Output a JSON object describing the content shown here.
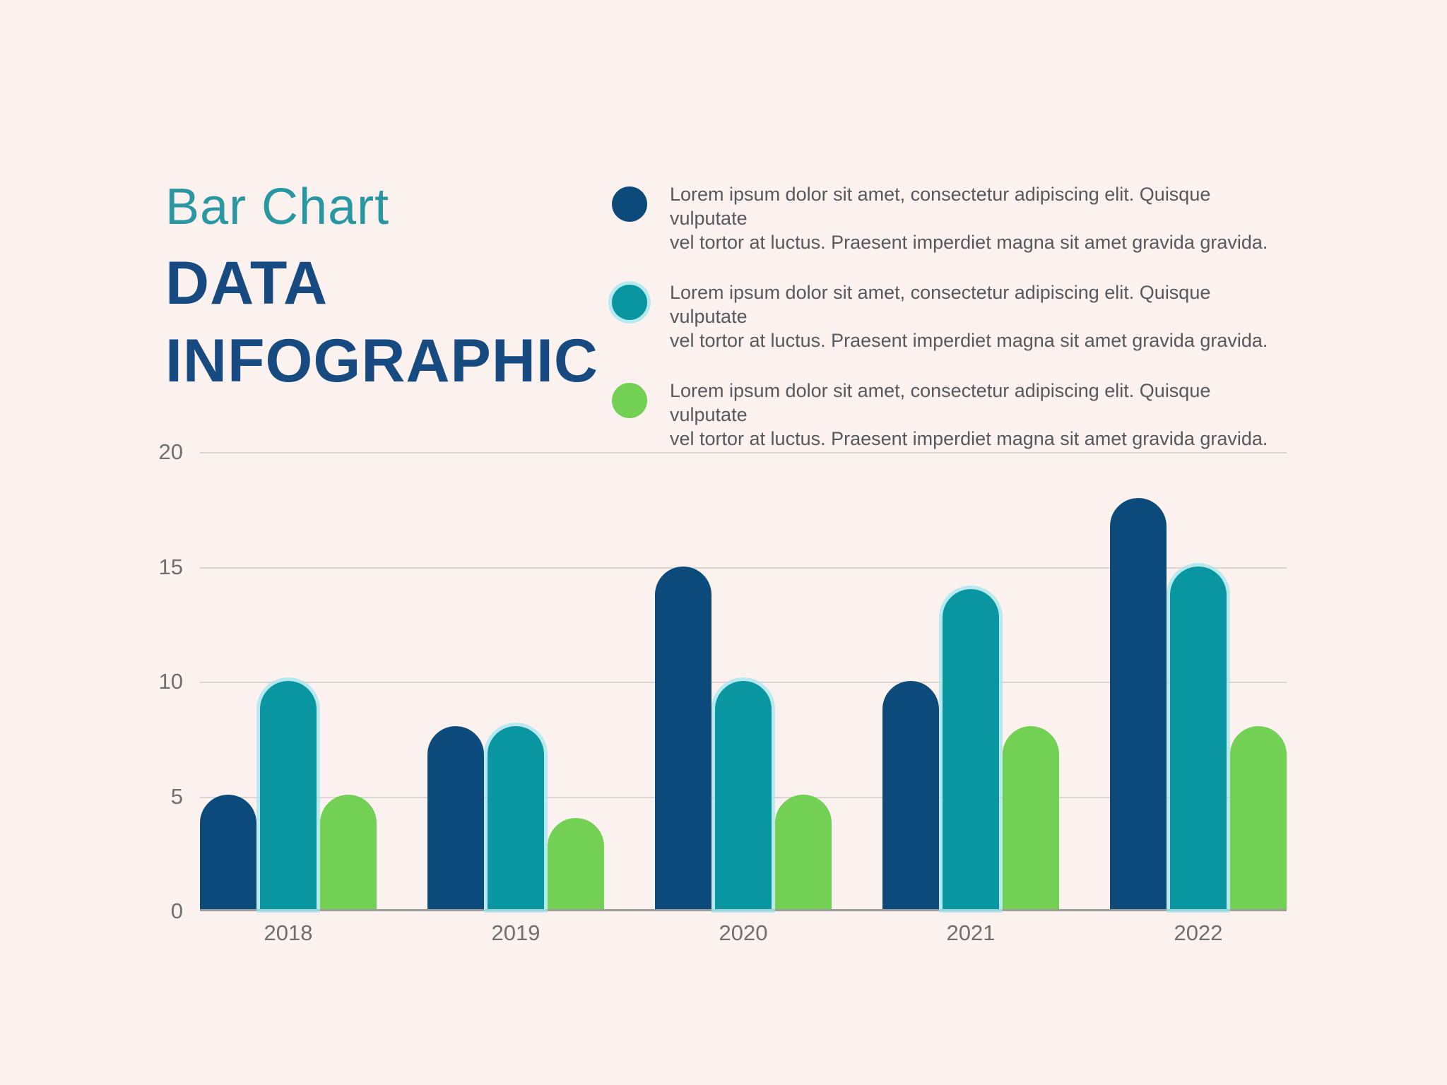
{
  "header": {
    "subtitle": "Bar Chart",
    "title_line1": "DATA",
    "title_line2": "INFOGRAPHIC"
  },
  "legend": {
    "items": [
      {
        "series": "navy",
        "color": "#0D4A7C",
        "halo": false,
        "lines": [
          "Lorem ipsum dolor sit amet, consectetur adipiscing elit. Quisque vulputate",
          "vel tortor at luctus. Praesent imperdiet magna sit amet gravida gravida."
        ]
      },
      {
        "series": "teal",
        "color": "#0A96A0",
        "halo": true,
        "lines": [
          "Lorem ipsum dolor sit amet, consectetur adipiscing elit. Quisque vulputate",
          "vel tortor at luctus. Praesent imperdiet magna sit amet gravida gravida."
        ]
      },
      {
        "series": "green",
        "color": "#72D055",
        "halo": false,
        "lines": [
          "Lorem ipsum dolor sit amet, consectetur adipiscing elit. Quisque vulputate",
          "vel tortor at luctus. Praesent imperdiet magna sit amet gravida gravida."
        ]
      }
    ]
  },
  "chart_data": {
    "type": "bar",
    "categories": [
      "2018",
      "2019",
      "2020",
      "2021",
      "2022"
    ],
    "series": [
      {
        "name": "navy",
        "color": "#0D4A7C",
        "halo": false,
        "values": [
          5,
          8,
          15,
          10,
          18
        ]
      },
      {
        "name": "teal",
        "color": "#0A96A0",
        "halo": true,
        "values": [
          10,
          8,
          10,
          14,
          15
        ]
      },
      {
        "name": "green",
        "color": "#72D055",
        "halo": false,
        "values": [
          5,
          4,
          5,
          8,
          8
        ]
      }
    ],
    "title": "",
    "xlabel": "",
    "ylabel": "",
    "ylim": [
      0,
      20
    ],
    "yticks": [
      0,
      5,
      10,
      15,
      20
    ],
    "grid": true,
    "legend_position": "top-right"
  },
  "colors": {
    "bg": "#FBF2EF",
    "subtitle": "#2997A1",
    "title": "#164A80",
    "legend-text": "#57585C",
    "axis-text": "#6F6F6F",
    "grid": "#DBD5D2",
    "baseline": "#9E9B99",
    "halo": "#A0E5EE"
  }
}
